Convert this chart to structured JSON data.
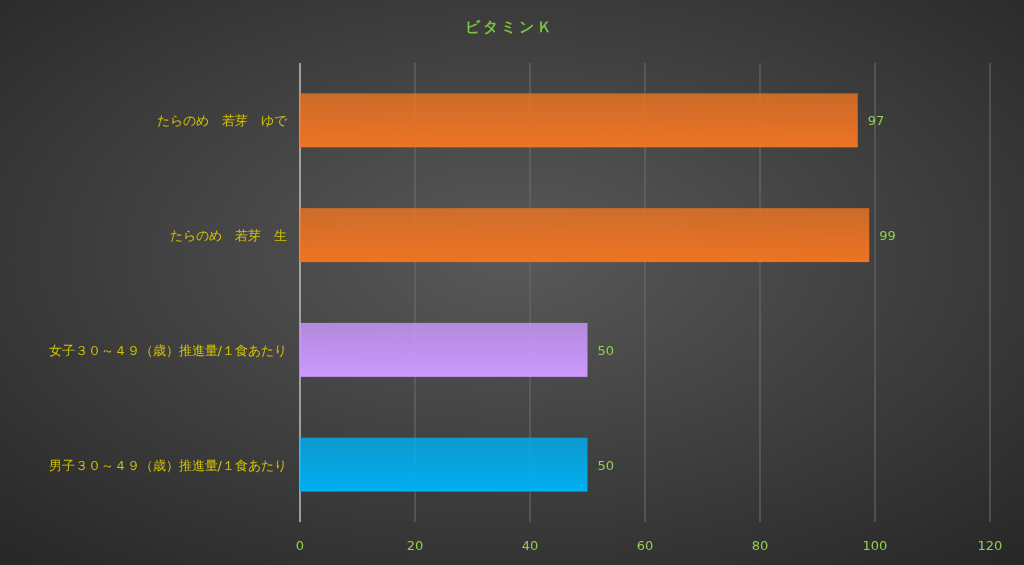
{
  "chart_data": {
    "type": "bar",
    "orientation": "horizontal",
    "title": "ビタミンＫ",
    "categories": [
      "たらのめ　若芽　ゆで",
      "たらのめ　若芽　生",
      "女子３０～４９（歳）推進量/１食あたり",
      "男子３０～４９（歳）推進量/１食あたり"
    ],
    "values": [
      97,
      99,
      50,
      50
    ],
    "colors": [
      "#ed7423",
      "#ed7423",
      "#cc99ff",
      "#00b0f0"
    ],
    "xlim": [
      0,
      120
    ],
    "xticks": [
      0,
      20,
      40,
      60,
      80,
      100,
      120
    ],
    "grid": "x",
    "data_labels": true
  }
}
